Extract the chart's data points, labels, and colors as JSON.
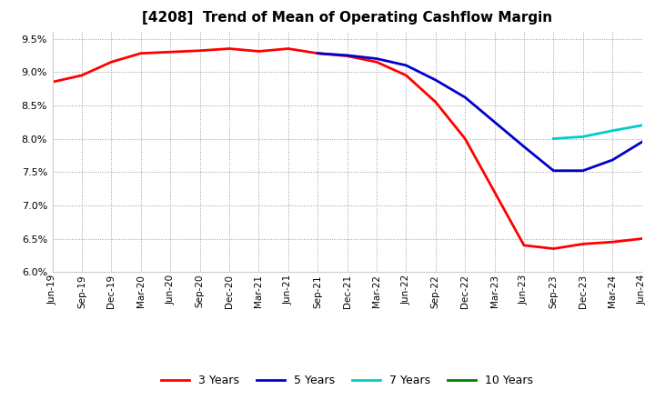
{
  "title": "[4208]  Trend of Mean of Operating Cashflow Margin",
  "ylim": [
    0.06,
    0.096
  ],
  "yticks": [
    0.06,
    0.065,
    0.07,
    0.075,
    0.08,
    0.085,
    0.09,
    0.095
  ],
  "x_labels": [
    "Jun-19",
    "Sep-19",
    "Dec-19",
    "Mar-20",
    "Jun-20",
    "Sep-20",
    "Dec-20",
    "Mar-21",
    "Jun-21",
    "Sep-21",
    "Dec-21",
    "Mar-22",
    "Jun-22",
    "Sep-22",
    "Dec-22",
    "Mar-23",
    "Jun-23",
    "Sep-23",
    "Dec-23",
    "Mar-24",
    "Jun-24"
  ],
  "series_3y": {
    "color": "#ff0000",
    "data_x": [
      0,
      1,
      2,
      3,
      4,
      5,
      6,
      7,
      8,
      9,
      10,
      11,
      12,
      13,
      14,
      15,
      16,
      17,
      18,
      19,
      20
    ],
    "data_y": [
      0.0885,
      0.0895,
      0.0915,
      0.0928,
      0.093,
      0.0932,
      0.0935,
      0.0931,
      0.0935,
      0.0928,
      0.0924,
      0.0915,
      0.0895,
      0.0855,
      0.08,
      0.072,
      0.064,
      0.0635,
      0.0642,
      0.0645,
      0.065
    ],
    "label": "3 Years"
  },
  "series_5y": {
    "color": "#0000cc",
    "data_x": [
      9,
      10,
      11,
      12,
      13,
      14,
      15,
      16,
      17,
      18,
      19,
      20
    ],
    "data_y": [
      0.0928,
      0.0925,
      0.092,
      0.091,
      0.0888,
      0.0862,
      0.0825,
      0.0788,
      0.0752,
      0.0752,
      0.0768,
      0.0795
    ],
    "label": "5 Years"
  },
  "series_7y": {
    "color": "#00cccc",
    "data_x": [
      17,
      18,
      19,
      20
    ],
    "data_y": [
      0.08,
      0.0803,
      0.0812,
      0.082
    ],
    "label": "7 Years"
  },
  "series_10y": {
    "color": "#008000",
    "data_x": [],
    "data_y": [],
    "label": "10 Years"
  },
  "background_color": "#ffffff",
  "grid_color": "#999999",
  "plot_bg": "#ffffff"
}
